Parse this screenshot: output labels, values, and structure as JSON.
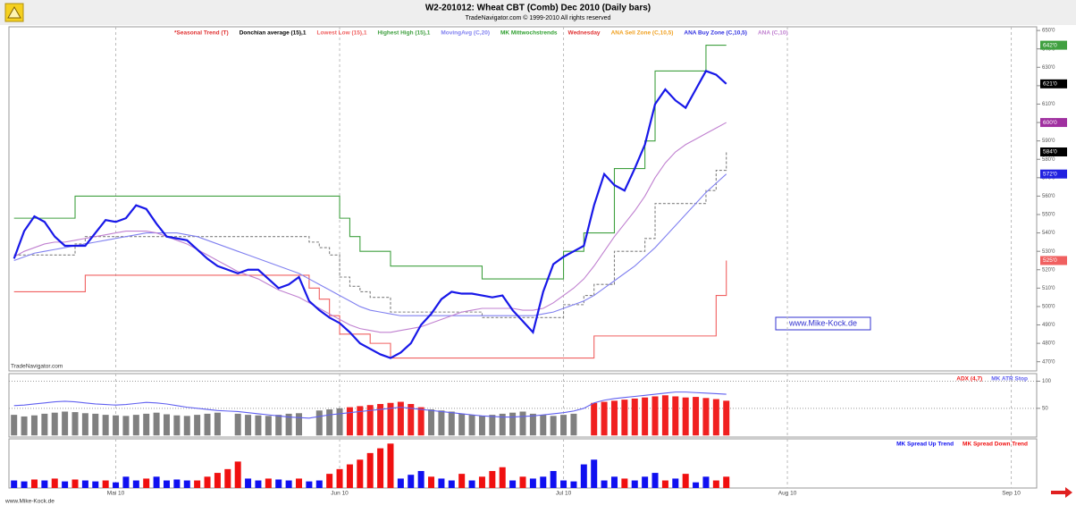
{
  "chart_data": [
    {
      "type": "line",
      "title": "W2-201012:  Wheat CBT (Comb) Dec 2010  (Daily bars)",
      "subtitle": "TradeNavigator.com © 1999-2010 All rights reserved",
      "source": "TradeNavigator.com",
      "watermark": "www.Mike-Kock.de",
      "legend_extra": [
        {
          "label": "*Seasonal Trend (T)",
          "color": "#e03030"
        },
        {
          "label": "MK Mittwochstrends",
          "color": "#30a030"
        },
        {
          "label": "Wednesday",
          "color": "#e03030"
        },
        {
          "label": "ANA Sell Zone (C,10,5)",
          "color": "#f0a020"
        },
        {
          "label": "ANA Buy Zone (C,10,5)",
          "color": "#3030e0"
        }
      ],
      "ylim": [
        465,
        652
      ],
      "yticks": [
        {
          "value": 470,
          "label": "470'0"
        },
        {
          "value": 480,
          "label": "480'0"
        },
        {
          "value": 490,
          "label": "490'0"
        },
        {
          "value": 500,
          "label": "500'0"
        },
        {
          "value": 510,
          "label": "510'0"
        },
        {
          "value": 520,
          "label": "520'0"
        },
        {
          "value": 530,
          "label": "530'0"
        },
        {
          "value": 540,
          "label": "540'0"
        },
        {
          "value": 550,
          "label": "550'0"
        },
        {
          "value": 560,
          "label": "560'0"
        },
        {
          "value": 570,
          "label": "570'0"
        },
        {
          "value": 580,
          "label": "580'0"
        },
        {
          "value": 590,
          "label": "590'0"
        },
        {
          "value": 600,
          "label": "600'0"
        },
        {
          "value": 610,
          "label": "610'0"
        },
        {
          "value": 620,
          "label": "620'0"
        },
        {
          "value": 630,
          "label": "630'0"
        },
        {
          "value": 640,
          "label": "640'0"
        },
        {
          "value": 650,
          "label": "650'0"
        }
      ],
      "series": [
        {
          "name": "Highest High (15),1",
          "color": "#40a040",
          "step": true,
          "last_label": "642'0",
          "values": [
            548,
            548,
            548,
            548,
            548,
            548,
            560,
            560,
            560,
            560,
            560,
            560,
            560,
            560,
            560,
            560,
            560,
            560,
            560,
            560,
            560,
            560,
            560,
            560,
            560,
            560,
            560,
            560,
            560,
            560,
            560,
            560,
            548,
            538,
            530,
            530,
            530,
            522,
            522,
            522,
            522,
            522,
            522,
            522,
            522,
            522,
            515,
            515,
            515,
            515,
            515,
            515,
            515,
            515,
            530,
            530,
            540,
            540,
            540,
            575,
            575,
            575,
            590,
            628,
            628,
            628,
            628,
            628,
            642,
            642,
            642
          ]
        },
        {
          "name": "Lowest Low (15),1",
          "color": "#f06060",
          "step": true,
          "last_label": "525'0",
          "values": [
            508,
            508,
            508,
            508,
            508,
            508,
            508,
            517,
            517,
            517,
            517,
            517,
            517,
            517,
            517,
            517,
            517,
            517,
            517,
            517,
            517,
            517,
            517,
            517,
            517,
            517,
            517,
            517,
            517,
            510,
            504,
            495,
            485,
            485,
            485,
            480,
            480,
            472,
            472,
            472,
            472,
            472,
            472,
            472,
            472,
            472,
            472,
            472,
            472,
            472,
            472,
            472,
            472,
            472,
            472,
            472,
            472,
            484,
            484,
            484,
            484,
            484,
            484,
            484,
            484,
            484,
            484,
            484,
            484,
            506,
            525
          ]
        },
        {
          "name": "Donchian average (15),1",
          "color": "#808080",
          "step": true,
          "dashed": true,
          "last_label": "584'0",
          "tag_color": "#000000",
          "values": [
            528,
            528,
            528,
            528,
            528,
            528,
            534,
            538,
            538,
            538,
            538,
            538,
            538,
            538,
            538,
            538,
            538,
            538,
            538,
            538,
            538,
            538,
            538,
            538,
            538,
            538,
            538,
            538,
            538,
            535,
            532,
            528,
            516,
            511,
            508,
            505,
            505,
            497,
            497,
            497,
            497,
            497,
            497,
            497,
            497,
            497,
            494,
            494,
            494,
            494,
            494,
            494,
            494,
            494,
            501,
            501,
            506,
            512,
            512,
            530,
            530,
            530,
            537,
            556,
            556,
            556,
            556,
            556,
            563,
            574,
            584
          ]
        },
        {
          "name": "MovingAvg (C,20)",
          "color": "#8080f0",
          "last_label": "572'0",
          "tag_color": "#2020e0",
          "values": [
            525,
            527,
            529,
            530,
            531,
            532,
            533,
            534,
            535,
            536,
            537,
            538,
            539,
            540,
            540,
            540,
            540,
            539,
            538,
            536,
            534,
            532,
            530,
            528,
            526,
            524,
            522,
            520,
            518,
            515,
            512,
            509,
            506,
            503,
            500,
            498,
            497,
            496,
            495,
            495,
            495,
            495,
            495,
            495,
            495,
            495,
            495,
            495,
            495,
            495,
            495,
            495,
            496,
            497,
            499,
            501,
            503,
            506,
            510,
            514,
            518,
            522,
            527,
            532,
            538,
            544,
            550,
            556,
            562,
            567,
            572
          ]
        },
        {
          "name": "ANA (C,10)",
          "color": "#c080d0",
          "last_label": "600'0",
          "tag_color": "#a030a0",
          "values": [
            527,
            530,
            532,
            534,
            535,
            535,
            536,
            537,
            538,
            539,
            540,
            541,
            541,
            541,
            540,
            538,
            536,
            534,
            531,
            528,
            525,
            522,
            519,
            517,
            515,
            512,
            509,
            507,
            505,
            502,
            499,
            496,
            493,
            490,
            488,
            487,
            486,
            486,
            487,
            488,
            489,
            491,
            493,
            495,
            497,
            498,
            499,
            499,
            499,
            499,
            498,
            498,
            499,
            502,
            506,
            510,
            515,
            522,
            530,
            538,
            545,
            552,
            560,
            570,
            578,
            584,
            588,
            591,
            594,
            597,
            600
          ]
        },
        {
          "color": "#1818e8",
          "width": 2.2,
          "last_label": "621'0",
          "tag_color": "#000000",
          "values": [
            526,
            541,
            549,
            546,
            538,
            533,
            533,
            533,
            540,
            547,
            546,
            548,
            555,
            553,
            545,
            538,
            537,
            536,
            531,
            526,
            522,
            520,
            518,
            520,
            520,
            515,
            510,
            512,
            516,
            503,
            498,
            494,
            491,
            486,
            480,
            477,
            474,
            472,
            475,
            480,
            490,
            496,
            504,
            508,
            507,
            507,
            506,
            505,
            506,
            498,
            492,
            486,
            508,
            523,
            527,
            530,
            533,
            555,
            572,
            566,
            563,
            575,
            588,
            610,
            618,
            612,
            608,
            618,
            628,
            626,
            621
          ]
        }
      ]
    },
    {
      "type": "bar",
      "ylim": [
        -3,
        114
      ],
      "yticks": [
        50,
        100
      ],
      "grid": true,
      "series": [
        {
          "color": "#808080",
          "values": [
            38,
            35,
            37,
            40,
            42,
            44,
            43,
            41,
            40,
            38,
            37,
            36,
            38,
            40,
            42,
            39,
            37,
            36,
            38,
            40,
            42,
            null,
            40,
            38,
            37,
            36,
            38,
            40,
            41,
            null,
            46,
            48,
            50,
            null,
            null,
            null,
            null,
            null,
            null,
            null,
            null,
            48,
            46,
            44,
            40,
            38,
            36,
            38,
            40,
            42,
            44,
            40,
            38,
            36,
            38,
            40,
            null,
            null,
            null,
            null,
            null,
            null,
            null,
            null,
            null,
            null,
            null,
            null,
            null,
            null,
            null
          ]
        },
        {
          "name": "ADX (4,7)",
          "color": "#f02020",
          "values": [
            null,
            null,
            null,
            null,
            null,
            null,
            null,
            null,
            null,
            null,
            null,
            null,
            null,
            null,
            null,
            null,
            null,
            null,
            null,
            null,
            null,
            null,
            null,
            null,
            null,
            null,
            null,
            null,
            null,
            null,
            null,
            null,
            null,
            52,
            54,
            56,
            58,
            60,
            62,
            58,
            52,
            null,
            null,
            null,
            null,
            null,
            null,
            null,
            null,
            null,
            null,
            null,
            null,
            null,
            null,
            null,
            null,
            60,
            62,
            64,
            66,
            68,
            70,
            72,
            74,
            72,
            70,
            71,
            69,
            67,
            64
          ]
        },
        {
          "name": "MK ATR Stop",
          "color": "#6060f0",
          "kind": "line",
          "values": [
            55,
            56,
            58,
            60,
            62,
            63,
            62,
            60,
            58,
            57,
            56,
            57,
            59,
            61,
            60,
            58,
            55,
            52,
            50,
            48,
            46,
            45,
            44,
            42,
            40,
            38,
            36,
            34,
            33,
            32,
            35,
            38,
            40,
            42,
            44,
            46,
            48,
            50,
            52,
            50,
            48,
            46,
            44,
            42,
            40,
            38,
            36,
            35,
            34,
            34,
            35,
            36,
            38,
            40,
            42,
            45,
            50,
            60,
            65,
            68,
            70,
            72,
            74,
            76,
            78,
            80,
            80,
            79,
            78,
            77,
            76
          ]
        }
      ]
    },
    {
      "type": "bar",
      "ylim": [
        0,
        52
      ],
      "xlim": [
        -0.5,
        100.5
      ],
      "xticks": [
        {
          "value": 10,
          "label": "Mai 10"
        },
        {
          "value": 32,
          "label": "Jun 10"
        },
        {
          "value": 54,
          "label": "Jul 10"
        },
        {
          "value": 76,
          "label": "Aug 10"
        },
        {
          "value": 98,
          "label": "Sep 10"
        }
      ],
      "footer": "www.Mike-Kock.de",
      "series": [
        {
          "name": "MK Spread Up Trend",
          "color": "#1010f0",
          "values": [
            8,
            7,
            null,
            8,
            null,
            7,
            null,
            8,
            7,
            null,
            6,
            12,
            8,
            null,
            12,
            8,
            9,
            8,
            null,
            null,
            null,
            null,
            null,
            10,
            8,
            null,
            9,
            8,
            null,
            7,
            8,
            null,
            null,
            null,
            null,
            null,
            null,
            null,
            10,
            14,
            18,
            null,
            10,
            8,
            null,
            8,
            null,
            null,
            null,
            8,
            null,
            10,
            12,
            18,
            8,
            7,
            25,
            30,
            8,
            12,
            null,
            8,
            12,
            16,
            null,
            10,
            null,
            6,
            12,
            null,
            null
          ]
        },
        {
          "name": "MK Spread Down Trend",
          "color": "#f01010",
          "values": [
            null,
            null,
            9,
            null,
            10,
            null,
            9,
            null,
            null,
            8,
            null,
            null,
            null,
            10,
            null,
            null,
            null,
            null,
            8,
            12,
            16,
            20,
            28,
            null,
            null,
            10,
            null,
            null,
            10,
            null,
            null,
            15,
            20,
            25,
            30,
            37,
            42,
            47,
            null,
            null,
            null,
            12,
            null,
            null,
            15,
            null,
            12,
            18,
            22,
            null,
            12,
            null,
            null,
            null,
            null,
            null,
            null,
            null,
            null,
            null,
            10,
            null,
            null,
            null,
            8,
            null,
            15,
            null,
            null,
            8,
            12
          ]
        }
      ]
    }
  ]
}
